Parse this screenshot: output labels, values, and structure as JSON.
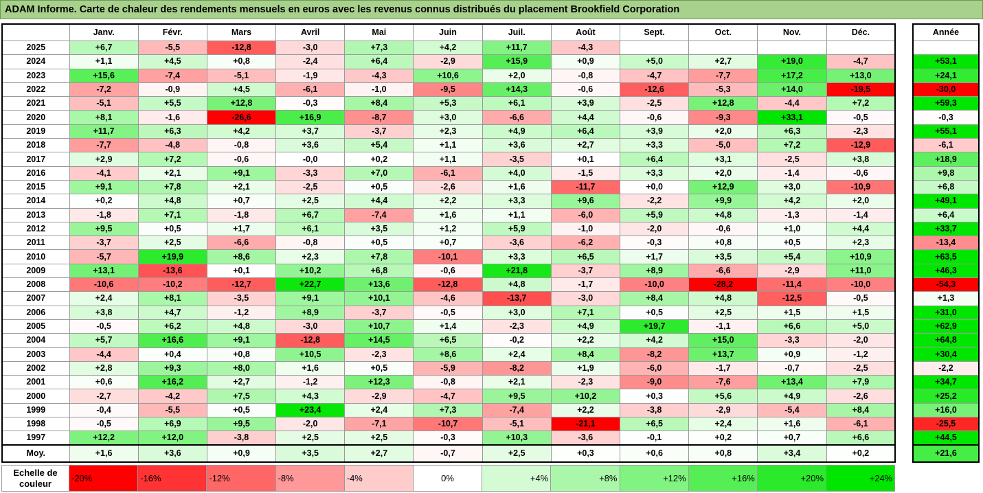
{
  "title": "ADAM Informe. Carte de chaleur des rendements mensuels en euros avec les revenus connus distribués du placement Brookfield Corporation",
  "chart_data": {
    "type": "heatmap",
    "columns": [
      "Janv.",
      "Févr.",
      "Mars",
      "Avril",
      "Mai",
      "Juin",
      "Juil.",
      "Août",
      "Sept.",
      "Oct.",
      "Nov.",
      "Déc."
    ],
    "year_header": "Année",
    "rows": [
      {
        "year": "2025",
        "months": [
          "+6,7",
          "-5,5",
          "-12,8",
          "-3,0",
          "+7,3",
          "+4,2",
          "+11,7",
          "-4,3",
          "",
          "",
          "",
          ""
        ],
        "annual": ""
      },
      {
        "year": "2024",
        "months": [
          "+1,1",
          "+4,5",
          "+0,8",
          "-2,4",
          "+6,4",
          "-2,9",
          "+15,9",
          "+0,9",
          "+5,0",
          "+2,7",
          "+19,0",
          "-4,7"
        ],
        "annual": "+53,1"
      },
      {
        "year": "2023",
        "months": [
          "+15,6",
          "-7,4",
          "-5,1",
          "-1,9",
          "-4,3",
          "+10,6",
          "+2,0",
          "-0,8",
          "-4,7",
          "-7,7",
          "+17,2",
          "+13,0"
        ],
        "annual": "+24,1"
      },
      {
        "year": "2022",
        "months": [
          "-7,2",
          "-0,9",
          "+4,5",
          "-6,1",
          "-1,0",
          "-9,5",
          "+14,3",
          "-0,6",
          "-12,6",
          "-5,3",
          "+14,0",
          "-19,5"
        ],
        "annual": "-30,0"
      },
      {
        "year": "2021",
        "months": [
          "-5,1",
          "+5,5",
          "+12,8",
          "-0,3",
          "+8,4",
          "+5,3",
          "+6,1",
          "+3,9",
          "-2,5",
          "+12,8",
          "-4,4",
          "+7,2"
        ],
        "annual": "+59,3"
      },
      {
        "year": "2020",
        "months": [
          "+8,1",
          "-1,6",
          "-26,6",
          "+16,9",
          "-8,7",
          "+3,0",
          "-6,6",
          "+4,4",
          "-0,6",
          "-9,3",
          "+33,1",
          "-0,5"
        ],
        "annual": "-0,3"
      },
      {
        "year": "2019",
        "months": [
          "+11,7",
          "+6,3",
          "+4,2",
          "+3,7",
          "-3,7",
          "+2,3",
          "+4,9",
          "+6,4",
          "+3,9",
          "+2,0",
          "+6,3",
          "-2,3"
        ],
        "annual": "+55,1"
      },
      {
        "year": "2018",
        "months": [
          "-7,7",
          "-4,8",
          "-0,8",
          "+3,6",
          "+5,4",
          "+1,1",
          "+3,6",
          "+2,7",
          "+3,3",
          "-5,0",
          "+7,2",
          "-12,9"
        ],
        "annual": "-6,1"
      },
      {
        "year": "2017",
        "months": [
          "+2,9",
          "+7,2",
          "-0,6",
          "-0,0",
          "+0,2",
          "+1,1",
          "-3,5",
          "+0,1",
          "+6,4",
          "+3,1",
          "-2,5",
          "+3,8"
        ],
        "annual": "+18,9"
      },
      {
        "year": "2016",
        "months": [
          "-4,1",
          "+2,1",
          "+9,1",
          "-3,3",
          "+7,0",
          "-6,1",
          "+4,0",
          "-1,5",
          "+3,3",
          "+2,0",
          "-1,4",
          "-0,6"
        ],
        "annual": "+9,8"
      },
      {
        "year": "2015",
        "months": [
          "+9,1",
          "+7,8",
          "+2,1",
          "-2,5",
          "+0,5",
          "-2,6",
          "+1,6",
          "-11,7",
          "+0,0",
          "+12,9",
          "+3,0",
          "-10,9"
        ],
        "annual": "+6,8"
      },
      {
        "year": "2014",
        "months": [
          "+0,2",
          "+4,8",
          "+0,7",
          "+2,5",
          "+4,4",
          "+2,2",
          "+3,3",
          "+9,6",
          "-2,2",
          "+9,9",
          "+4,2",
          "+2,0"
        ],
        "annual": "+49,1"
      },
      {
        "year": "2013",
        "months": [
          "-1,8",
          "+7,1",
          "-1,8",
          "+6,7",
          "-7,4",
          "+1,6",
          "+1,1",
          "-6,0",
          "+5,9",
          "+4,8",
          "-1,3",
          "-1,4"
        ],
        "annual": "+6,4"
      },
      {
        "year": "2012",
        "months": [
          "+9,5",
          "+0,5",
          "+1,7",
          "+6,1",
          "+3,5",
          "+1,2",
          "+5,9",
          "-1,0",
          "-2,0",
          "-0,6",
          "+1,0",
          "+4,4"
        ],
        "annual": "+33,7"
      },
      {
        "year": "2011",
        "months": [
          "-3,7",
          "+2,5",
          "-6,6",
          "-0,8",
          "+0,5",
          "+0,7",
          "-3,6",
          "-6,2",
          "-0,3",
          "+0,8",
          "+0,5",
          "+2,3"
        ],
        "annual": "-13,4"
      },
      {
        "year": "2010",
        "months": [
          "-5,7",
          "+19,9",
          "+8,6",
          "+2,3",
          "+7,8",
          "-10,1",
          "+3,3",
          "+6,5",
          "+1,7",
          "+3,5",
          "+5,4",
          "+10,9"
        ],
        "annual": "+63,5"
      },
      {
        "year": "2009",
        "months": [
          "+13,1",
          "-13,6",
          "+0,1",
          "+10,2",
          "+6,8",
          "-0,6",
          "+21,8",
          "-3,7",
          "+8,9",
          "-6,6",
          "-2,9",
          "+11,0"
        ],
        "annual": "+46,3"
      },
      {
        "year": "2008",
        "months": [
          "-10,6",
          "-10,2",
          "-12,7",
          "+22,7",
          "+13,6",
          "-12,8",
          "+4,8",
          "-1,7",
          "-10,0",
          "-28,2",
          "-11,4",
          "-10,0"
        ],
        "annual": "-54,3"
      },
      {
        "year": "2007",
        "months": [
          "+2,4",
          "+8,1",
          "-3,5",
          "+9,1",
          "+10,1",
          "-4,6",
          "-13,7",
          "-3,0",
          "+8,4",
          "+4,8",
          "-12,5",
          "-0,5"
        ],
        "annual": "+1,3"
      },
      {
        "year": "2006",
        "months": [
          "+3,8",
          "+4,7",
          "-1,2",
          "+8,9",
          "-3,7",
          "-0,5",
          "+3,0",
          "+7,1",
          "+0,5",
          "+2,5",
          "+1,5",
          "+1,5"
        ],
        "annual": "+31,0"
      },
      {
        "year": "2005",
        "months": [
          "-0,5",
          "+6,2",
          "+4,8",
          "-3,0",
          "+10,7",
          "+1,4",
          "-2,3",
          "+4,9",
          "+19,7",
          "-1,1",
          "+6,6",
          "+5,0"
        ],
        "annual": "+62,9"
      },
      {
        "year": "2004",
        "months": [
          "+5,7",
          "+16,6",
          "+9,1",
          "-12,8",
          "+14,5",
          "+6,5",
          "-0,2",
          "+2,2",
          "+4,2",
          "+15,0",
          "-3,3",
          "-2,0"
        ],
        "annual": "+64,8"
      },
      {
        "year": "2003",
        "months": [
          "-4,4",
          "+0,4",
          "+0,8",
          "+10,5",
          "-2,3",
          "+8,6",
          "+2,4",
          "+8,4",
          "-8,2",
          "+13,7",
          "+0,9",
          "-1,2"
        ],
        "annual": "+30,4"
      },
      {
        "year": "2002",
        "months": [
          "+2,8",
          "+9,3",
          "+8,0",
          "+1,6",
          "+0,5",
          "-5,9",
          "-8,2",
          "+1,9",
          "-6,0",
          "-1,7",
          "-0,7",
          "-2,5"
        ],
        "annual": "-2,2"
      },
      {
        "year": "2001",
        "months": [
          "+0,6",
          "+16,2",
          "+2,7",
          "-1,2",
          "+12,3",
          "-0,8",
          "+2,1",
          "-2,3",
          "-9,0",
          "-7,6",
          "+13,4",
          "+7,9"
        ],
        "annual": "+34,7"
      },
      {
        "year": "2000",
        "months": [
          "-2,7",
          "-4,2",
          "+7,5",
          "+4,3",
          "-2,9",
          "-4,7",
          "+9,5",
          "+10,2",
          "+0,3",
          "+5,6",
          "+4,9",
          "-2,6"
        ],
        "annual": "+25,2"
      },
      {
        "year": "1999",
        "months": [
          "-0,4",
          "-5,5",
          "+0,5",
          "+23,4",
          "+2,4",
          "+7,3",
          "-7,4",
          "+2,2",
          "-3,8",
          "-2,9",
          "-5,4",
          "+8,4"
        ],
        "annual": "+16,0"
      },
      {
        "year": "1998",
        "months": [
          "-0,5",
          "+6,9",
          "+9,5",
          "-2,0",
          "-7,1",
          "-10,7",
          "-5,1",
          "-21,1",
          "+6,5",
          "+2,4",
          "+1,6",
          "-6,1"
        ],
        "annual": "-25,5"
      },
      {
        "year": "1997",
        "months": [
          "+12,2",
          "+12,0",
          "-3,8",
          "+2,5",
          "+2,5",
          "-0,3",
          "+10,3",
          "-3,6",
          "-0,1",
          "+0,2",
          "+0,7",
          "+6,6"
        ],
        "annual": "+44,5"
      }
    ],
    "average": {
      "label": "Moy.",
      "months": [
        "+1,6",
        "+3,6",
        "+0,9",
        "+3,5",
        "+2,7",
        "-0,7",
        "+2,5",
        "+0,3",
        "+0,6",
        "+0,8",
        "+3,4",
        "+0,2"
      ],
      "annual": "+21,6"
    },
    "scale": {
      "label": "Echelle de couleur",
      "entries": [
        "-20%",
        "-16%",
        "-12%",
        "-8%",
        "-4%",
        "0%",
        "+4%",
        "+8%",
        "+12%",
        "+16%",
        "+20%",
        "+24%"
      ],
      "values": [
        -20,
        -16,
        -12,
        -8,
        -4,
        0,
        4,
        8,
        12,
        16,
        20,
        24
      ]
    },
    "colors": {
      "negative_max": "#ff0000",
      "neutral": "#ffffff",
      "positive_max": "#00e600",
      "title_background": "#a9d18e"
    }
  }
}
